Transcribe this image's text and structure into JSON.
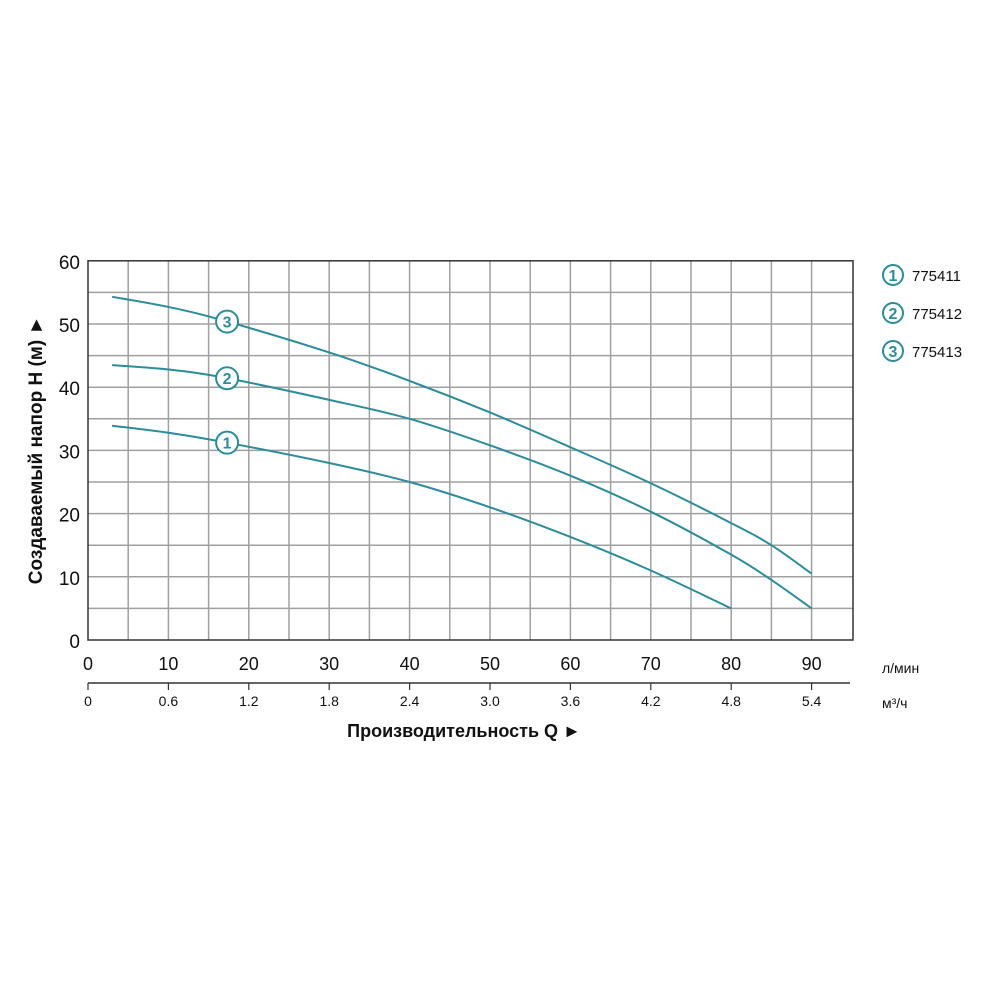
{
  "chart_data": {
    "type": "line",
    "ylabel": "Создаваемый напор H (м) ►",
    "xlabel": "Производительность Q ►",
    "x_unit": "л/мин",
    "x2_unit": "м³/ч",
    "xlim": [
      0,
      95
    ],
    "ylim": [
      0,
      60
    ],
    "grid": true,
    "x_ticks": [
      0,
      10,
      20,
      30,
      40,
      50,
      60,
      70,
      80,
      90
    ],
    "x_tick_labels": [
      "0",
      "10",
      "20",
      "30",
      "40",
      "50",
      "60",
      "70",
      "80",
      "90"
    ],
    "x2_tick_labels": [
      "0",
      "0.6",
      "1.2",
      "1.8",
      "2.4",
      "3.0",
      "3.6",
      "4.2",
      "4.8",
      "5.4"
    ],
    "y_ticks": [
      0,
      10,
      20,
      30,
      40,
      50,
      60
    ],
    "y_tick_labels": [
      "0",
      "10",
      "20",
      "30",
      "40",
      "50",
      "60"
    ],
    "legend_position": "right",
    "series": [
      {
        "marker": "1",
        "name": "775411",
        "x": [
          3,
          10,
          17,
          30,
          40,
          50,
          60,
          70,
          80
        ],
        "y": [
          33.9,
          32.8,
          31.3,
          28,
          25,
          21,
          16.3,
          11,
          5
        ]
      },
      {
        "marker": "2",
        "name": "775412",
        "x": [
          3,
          10,
          17,
          30,
          40,
          50,
          60,
          70,
          80,
          85,
          90
        ],
        "y": [
          43.5,
          42.8,
          41.5,
          38,
          35,
          30.8,
          26,
          20.3,
          13.5,
          9.5,
          5
        ]
      },
      {
        "marker": "3",
        "name": "775413",
        "x": [
          3,
          10,
          17,
          30,
          40,
          50,
          60,
          70,
          80,
          85,
          90
        ],
        "y": [
          54.3,
          52.7,
          50.5,
          45.5,
          41,
          36,
          30.5,
          24.8,
          18.5,
          15,
          10.5
        ]
      }
    ],
    "label_x": 17.3,
    "colors": {
      "line": "#2a8d9c",
      "grid": "#a0a0a0",
      "axis": "#333333"
    }
  }
}
